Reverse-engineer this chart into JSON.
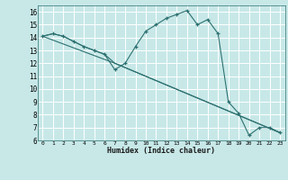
{
  "xlabel": "Humidex (Indice chaleur)",
  "bg_color": "#c8e8e8",
  "grid_color": "#ffffff",
  "line_color": "#2d7070",
  "xlim": [
    -0.5,
    23.5
  ],
  "ylim": [
    6,
    16.5
  ],
  "xticks": [
    0,
    1,
    2,
    3,
    4,
    5,
    6,
    7,
    8,
    9,
    10,
    11,
    12,
    13,
    14,
    15,
    16,
    17,
    18,
    19,
    20,
    21,
    22,
    23
  ],
  "yticks": [
    6,
    7,
    8,
    9,
    10,
    11,
    12,
    13,
    14,
    15,
    16
  ],
  "series1_x": [
    0,
    1,
    2,
    3,
    4,
    5,
    6,
    7,
    8,
    9,
    10,
    11,
    12,
    13,
    14,
    15,
    16,
    17,
    18,
    19,
    20,
    21,
    22,
    23
  ],
  "series1_y": [
    14.1,
    14.3,
    14.1,
    13.7,
    13.3,
    13.0,
    12.7,
    11.5,
    12.0,
    13.3,
    14.5,
    15.0,
    15.5,
    15.8,
    16.1,
    15.0,
    15.4,
    14.3,
    9.0,
    8.1,
    6.4,
    7.0,
    7.0,
    6.6
  ],
  "series2_x": [
    0,
    1,
    2,
    3,
    4,
    5,
    6,
    7,
    23
  ],
  "series2_y": [
    14.1,
    14.3,
    14.1,
    13.7,
    13.3,
    13.0,
    12.7,
    12.0,
    6.6
  ],
  "series3_x": [
    0,
    7,
    23
  ],
  "series3_y": [
    14.1,
    12.0,
    6.6
  ]
}
